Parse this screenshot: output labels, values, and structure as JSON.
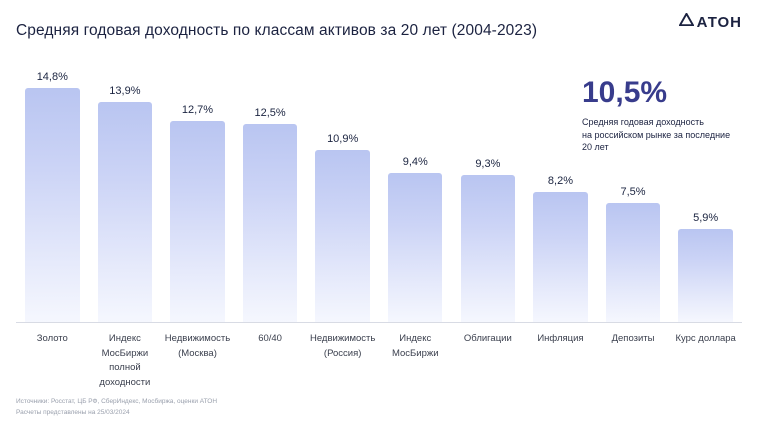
{
  "header": {
    "title": "Средняя годовая доходность по классам активов за 20 лет (2004-2023)",
    "logo_text": "АТОН"
  },
  "chart_data": {
    "type": "bar",
    "title": "Средняя годовая доходность по классам активов за 20 лет (2004-2023)",
    "categories": [
      "Золото",
      "Индекс\nМосБиржи\nполной\nдоходности",
      "Недвижимость\n(Москва)",
      "60/40",
      "Недвижимость\n(Россия)",
      "Индекс\nМосБиржи",
      "Облигации",
      "Инфляция",
      "Депозиты",
      "Курс доллара"
    ],
    "values": [
      14.8,
      13.9,
      12.7,
      12.5,
      10.9,
      9.4,
      9.3,
      8.2,
      7.5,
      5.9
    ],
    "value_labels": [
      "14,8%",
      "13,9%",
      "12,7%",
      "12,5%",
      "10,9%",
      "9,4%",
      "9,3%",
      "8,2%",
      "7,5%",
      "5,9%"
    ],
    "xlabel": "",
    "ylabel": "",
    "ylim": [
      0,
      15
    ],
    "grid": false,
    "legend": false,
    "bar_color_top": "#b9c5f1",
    "bar_color_bottom": "#f5f7fe"
  },
  "annotation": {
    "value": "10,5%",
    "text": "Средняя годовая доходность\nна российском рынке за последние\n20 лет"
  },
  "footer": {
    "sources": "Источники: Росстат, ЦБ РФ, СберИндекс, Мосбиржа, оценки АТОН",
    "note": "Расчеты представлены на 25/03/2024"
  }
}
